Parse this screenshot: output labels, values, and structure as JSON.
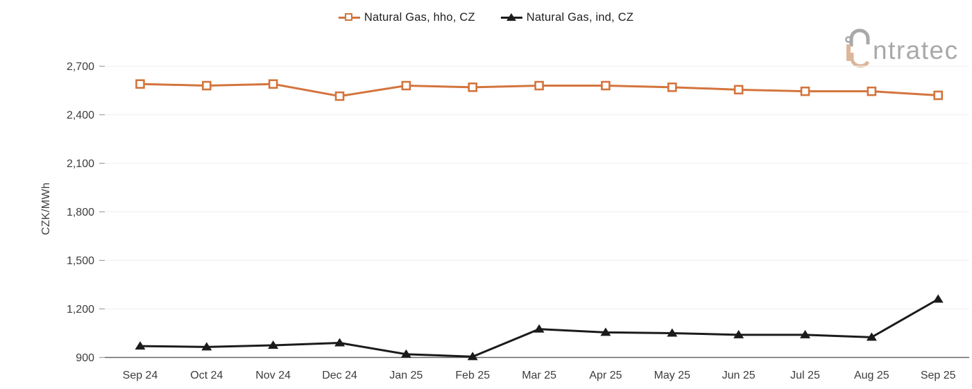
{
  "logo": {
    "wordmark": "ntratec",
    "full_name": "intratec",
    "gray": "#a9a9a9",
    "tan": "#dcb69b"
  },
  "colors": {
    "accent_orange": "#d3743c",
    "series_black": "#1b1b1b",
    "gridline": "#f1f1f1",
    "axis_line": "#666666",
    "tick_mark": "#9e9e9e",
    "tick_text": "#3c3c3c",
    "legend_text": "#212121"
  },
  "chart_data": {
    "type": "line",
    "title": "",
    "xlabel": "",
    "ylabel": "CZK/MWh",
    "categories": [
      "Sep 24",
      "Oct 24",
      "Nov 24",
      "Dec 24",
      "Jan 25",
      "Feb 25",
      "Mar 25",
      "Apr 25",
      "May 25",
      "Jun 25",
      "Jul 25",
      "Aug 25",
      "Sep 25"
    ],
    "y_ticks": [
      900,
      1200,
      1500,
      1800,
      2100,
      2400,
      2700
    ],
    "ylim": [
      900,
      2700
    ],
    "grid": "horizontal-light",
    "legend_position": "top-center",
    "series": [
      {
        "name": "Natural Gas, hho, CZ",
        "color": "#d3743c",
        "marker": "hollow-square",
        "values": [
          2590,
          2580,
          2590,
          2515,
          2580,
          2570,
          2580,
          2580,
          2570,
          2555,
          2545,
          2545,
          2520
        ]
      },
      {
        "name": "Natural Gas, ind, CZ",
        "color": "#1b1b1b",
        "marker": "filled-triangle",
        "values": [
          970,
          965,
          975,
          990,
          920,
          905,
          1075,
          1055,
          1050,
          1040,
          1040,
          1025,
          1260
        ]
      }
    ]
  }
}
